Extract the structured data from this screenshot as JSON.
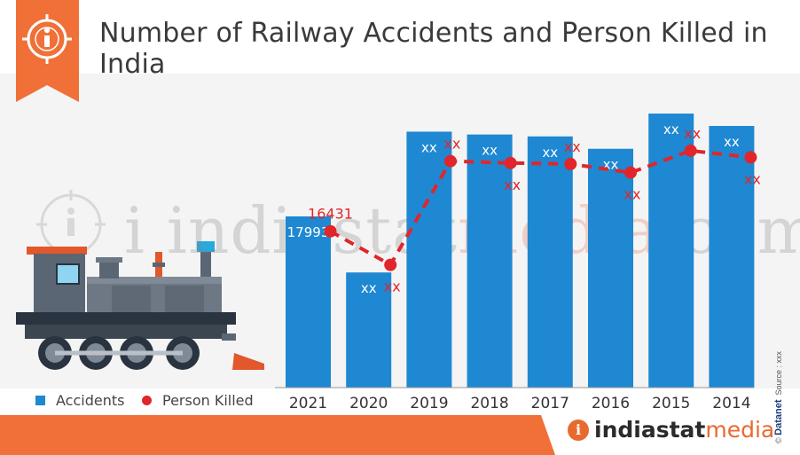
{
  "header": {
    "title": "Number of Railway Accidents and Person Killed in India",
    "info_icon": "info-icon"
  },
  "watermark": {
    "part1": "i indiastat",
    "part2": "media",
    "part3": ".com"
  },
  "legend": {
    "accidents_label": "Accidents",
    "killed_label": "Person Killed"
  },
  "footer": {
    "brand_left": "indiastat",
    "brand_right": "media",
    "credit_brand": "Datanet",
    "credit_source": "Source : xxx"
  },
  "colors": {
    "bar": "#1e88d2",
    "line": "#e0262b",
    "accent": "#f07038"
  },
  "chart_data": {
    "type": "bar",
    "title": "Number of Railway Accidents and Person Killed in India",
    "categories": [
      "2021",
      "2020",
      "2019",
      "2018",
      "2017",
      "2016",
      "2015",
      "2014"
    ],
    "series": [
      {
        "name": "Accidents",
        "type": "bar",
        "values": [
          17993,
          12100,
          26900,
          26600,
          26400,
          25100,
          28800,
          27500
        ],
        "labels": [
          "17993",
          "xx",
          "xx",
          "xx",
          "xx",
          "xx",
          "xx",
          "xx"
        ]
      },
      {
        "name": "Person Killed",
        "type": "line",
        "style": "dashed",
        "values": [
          16431,
          12900,
          23800,
          23600,
          23500,
          22600,
          24900,
          24200
        ],
        "labels": [
          "16431",
          "xx",
          "xx",
          "xx",
          "xx",
          "xx",
          "xx",
          "xx"
        ],
        "label_positions": [
          "above",
          "below",
          "above",
          "below",
          "above",
          "below",
          "above",
          "below"
        ]
      }
    ],
    "ylim": [
      0,
      33000
    ],
    "grid": false,
    "legend_position": "bottom-left"
  }
}
